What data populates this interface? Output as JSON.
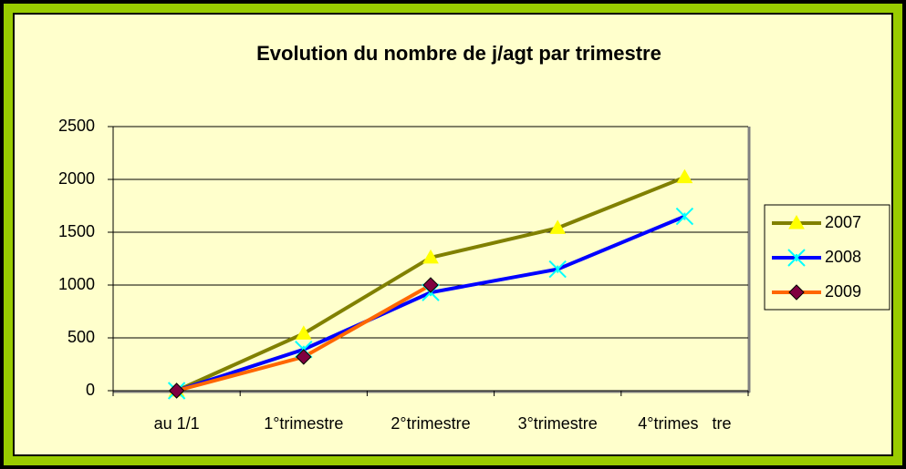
{
  "chart_data": {
    "type": "line",
    "title": "Evolution du nombre de j/agt par trimestre",
    "categories": [
      "au 1/1",
      "1°trimestre",
      "2°trimestre",
      "3°trimestre",
      "4°trimes   tre"
    ],
    "series": [
      {
        "name": "2007",
        "color": "#808000",
        "marker": "triangle",
        "marker_color": "#ffff00",
        "values": [
          0,
          540,
          1260,
          1540,
          2020
        ]
      },
      {
        "name": "2008",
        "color": "#0000ff",
        "marker": "x",
        "marker_color": "#00ffff",
        "values": [
          0,
          390,
          930,
          1150,
          1650
        ]
      },
      {
        "name": "2009",
        "color": "#ff6600",
        "marker": "diamond",
        "marker_color": "#800040",
        "values": [
          0,
          320,
          1000,
          null,
          null
        ]
      }
    ],
    "ylim": [
      0,
      2500
    ],
    "yticks": [
      0,
      500,
      1000,
      1500,
      2000,
      2500
    ],
    "grid": true,
    "legend": "right"
  }
}
